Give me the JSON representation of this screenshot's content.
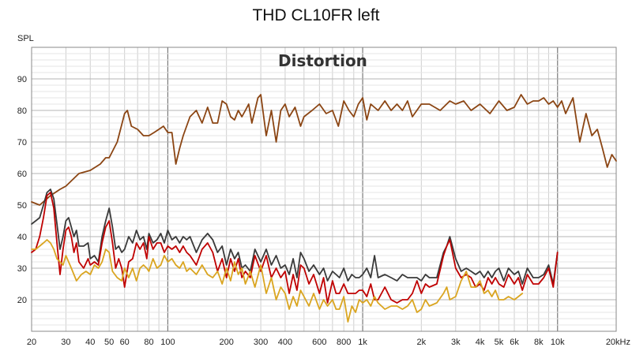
{
  "chart_data": {
    "type": "line",
    "title": "THD CL10FR left",
    "annotation": "Distortion",
    "ylabel": "SPL",
    "xlabel_unit": "Hz",
    "xscale": "log",
    "xlim": [
      20,
      20000
    ],
    "ylim": [
      10,
      100
    ],
    "grid": true,
    "x_ticks": [
      {
        "v": 20,
        "label": "20"
      },
      {
        "v": 30,
        "label": "30"
      },
      {
        "v": 40,
        "label": "40"
      },
      {
        "v": 50,
        "label": "50"
      },
      {
        "v": 60,
        "label": "60"
      },
      {
        "v": 80,
        "label": "80"
      },
      {
        "v": 100,
        "label": "100"
      },
      {
        "v": 200,
        "label": "200"
      },
      {
        "v": 300,
        "label": "300"
      },
      {
        "v": 400,
        "label": "400"
      },
      {
        "v": 600,
        "label": "600"
      },
      {
        "v": 800,
        "label": "800"
      },
      {
        "v": 1000,
        "label": "1k"
      },
      {
        "v": 2000,
        "label": "2k"
      },
      {
        "v": 3000,
        "label": "3k"
      },
      {
        "v": 4000,
        "label": "4k"
      },
      {
        "v": 5000,
        "label": "5k"
      },
      {
        "v": 6000,
        "label": "6k"
      },
      {
        "v": 8000,
        "label": "8k"
      },
      {
        "v": 10000,
        "label": "10k"
      },
      {
        "v": 20000,
        "label": "20kHz"
      }
    ],
    "y_ticks": [
      20,
      30,
      40,
      50,
      60,
      70,
      80,
      90
    ],
    "series": [
      {
        "color": "#8B4513",
        "x": [
          20,
          22,
          25,
          28,
          30,
          35,
          40,
          45,
          48,
          50,
          55,
          60,
          62,
          65,
          70,
          75,
          80,
          85,
          90,
          95,
          100,
          105,
          110,
          115,
          120,
          130,
          140,
          150,
          160,
          170,
          180,
          190,
          200,
          210,
          220,
          230,
          240,
          250,
          260,
          270,
          280,
          290,
          300,
          320,
          340,
          360,
          380,
          400,
          420,
          450,
          480,
          500,
          550,
          600,
          650,
          700,
          750,
          800,
          850,
          900,
          950,
          1000,
          1050,
          1100,
          1200,
          1300,
          1400,
          1500,
          1600,
          1700,
          1800,
          2000,
          2200,
          2500,
          2800,
          3000,
          3300,
          3600,
          4000,
          4500,
          5000,
          5500,
          6000,
          6500,
          7000,
          7500,
          8000,
          8500,
          9000,
          9500,
          10000,
          10500,
          11000,
          12000,
          13000,
          14000,
          15000,
          16000,
          17000,
          18000,
          19000,
          20000
        ],
        "values": [
          51,
          50,
          53,
          55,
          56,
          60,
          61,
          63,
          65,
          65,
          70,
          79,
          80,
          75,
          74,
          72,
          72,
          73,
          74,
          75,
          73,
          73,
          63,
          68,
          72,
          78,
          80,
          76,
          81,
          76,
          76,
          83,
          82,
          78,
          77,
          80,
          78,
          80,
          82,
          76,
          80,
          84,
          85,
          72,
          80,
          70,
          80,
          82,
          78,
          81,
          75,
          78,
          80,
          82,
          79,
          80,
          75,
          83,
          80,
          78,
          82,
          84,
          77,
          82,
          80,
          83,
          80,
          82,
          80,
          83,
          78,
          82,
          82,
          80,
          83,
          82,
          83,
          80,
          82,
          79,
          83,
          80,
          81,
          85,
          82,
          83,
          83,
          84,
          82,
          83,
          81,
          83,
          79,
          84,
          70,
          79,
          72,
          74,
          68,
          62,
          66,
          64
        ]
      },
      {
        "color": "#3a3a3a",
        "x": [
          20,
          21,
          22,
          23,
          24,
          25,
          26,
          27,
          28,
          29,
          30,
          31,
          32,
          33,
          34,
          35,
          37,
          39,
          40,
          42,
          44,
          46,
          48,
          50,
          52,
          54,
          56,
          58,
          60,
          63,
          66,
          69,
          72,
          75,
          78,
          80,
          84,
          88,
          92,
          96,
          100,
          105,
          110,
          115,
          120,
          125,
          130,
          140,
          150,
          160,
          170,
          180,
          190,
          200,
          210,
          220,
          230,
          240,
          250,
          265,
          280,
          300,
          320,
          340,
          360,
          380,
          400,
          420,
          440,
          460,
          480,
          500,
          530,
          560,
          600,
          630,
          660,
          700,
          730,
          760,
          800,
          840,
          880,
          920,
          960,
          1000,
          1050,
          1100,
          1150,
          1200,
          1300,
          1400,
          1500,
          1600,
          1700,
          1800,
          1900,
          2000,
          2100,
          2200,
          2400,
          2600,
          2700,
          2800,
          3000,
          3200,
          3400,
          3600,
          3800,
          4000,
          4200,
          4400,
          4600,
          4800,
          5000,
          5300,
          5600,
          6000,
          6300,
          6600,
          7000,
          7500,
          8000,
          8500,
          9000,
          9500,
          10000
        ],
        "values": [
          44,
          45,
          46,
          50,
          54,
          55,
          52,
          44,
          36,
          40,
          45,
          46,
          43,
          40,
          42,
          37,
          37,
          38,
          33,
          34,
          32,
          40,
          45,
          49,
          43,
          36,
          37,
          35,
          36,
          40,
          38,
          42,
          39,
          40,
          36,
          41,
          38,
          39,
          41,
          38,
          42,
          39,
          40,
          38,
          40,
          39,
          40,
          35,
          39,
          41,
          39,
          35,
          37,
          31,
          36,
          33,
          35,
          30,
          31,
          29,
          36,
          32,
          36,
          31,
          34,
          30,
          31,
          28,
          33,
          27,
          35,
          33,
          29,
          31,
          28,
          30,
          26,
          29,
          28,
          27,
          30,
          26,
          28,
          27,
          27,
          28,
          30,
          27,
          34,
          27,
          28,
          27,
          26,
          28,
          27,
          27,
          27,
          26,
          28,
          27,
          27,
          35,
          37,
          40,
          33,
          29,
          30,
          29,
          28,
          29,
          27,
          29,
          27,
          29,
          30,
          26,
          30,
          28,
          29,
          25,
          30,
          27,
          27,
          28,
          31,
          25,
          35
        ]
      },
      {
        "color": "#C00000",
        "x": [
          20,
          21,
          22,
          23,
          24,
          25,
          26,
          27,
          28,
          29,
          30,
          31,
          32,
          33,
          34,
          35,
          37,
          39,
          40,
          42,
          44,
          46,
          48,
          50,
          52,
          54,
          56,
          58,
          60,
          63,
          66,
          69,
          72,
          75,
          78,
          80,
          84,
          88,
          92,
          96,
          100,
          105,
          110,
          115,
          120,
          125,
          130,
          140,
          150,
          160,
          170,
          180,
          190,
          200,
          210,
          220,
          230,
          240,
          250,
          265,
          280,
          300,
          320,
          340,
          360,
          380,
          400,
          420,
          440,
          460,
          480,
          500,
          530,
          560,
          600,
          630,
          660,
          700,
          730,
          760,
          800,
          840,
          880,
          920,
          960,
          1000,
          1050,
          1100,
          1150,
          1200,
          1300,
          1400,
          1500,
          1600,
          1700,
          1800,
          1900,
          2000,
          2100,
          2200,
          2400,
          2600,
          2700,
          2800,
          3000,
          3200,
          3400,
          3600,
          3800,
          4000,
          4200,
          4400,
          4600,
          4800,
          5000,
          5300,
          5600,
          6000,
          6300,
          6600,
          7000,
          7500,
          8000,
          8500,
          9000,
          9500,
          10000
        ],
        "values": [
          35,
          36,
          40,
          46,
          53,
          54,
          49,
          38,
          28,
          36,
          42,
          43,
          40,
          35,
          38,
          32,
          30,
          33,
          31,
          32,
          31,
          38,
          43,
          45,
          38,
          30,
          33,
          30,
          24,
          32,
          33,
          38,
          36,
          38,
          33,
          40,
          36,
          38,
          38,
          35,
          37,
          36,
          37,
          35,
          37,
          35,
          34,
          31,
          36,
          38,
          35,
          29,
          33,
          27,
          33,
          29,
          33,
          27,
          29,
          27,
          34,
          29,
          34,
          27,
          30,
          27,
          29,
          22,
          28,
          23,
          31,
          30,
          25,
          28,
          22,
          27,
          19,
          26,
          22,
          22,
          25,
          22,
          22,
          22,
          23,
          23,
          21,
          25,
          20,
          20,
          24,
          20,
          19,
          20,
          20,
          22,
          26,
          22,
          25,
          24,
          25,
          34,
          37,
          39,
          30,
          27,
          28,
          27,
          24,
          25,
          23,
          27,
          25,
          27,
          25,
          24,
          28,
          25,
          27,
          23,
          28,
          25,
          25,
          27,
          30,
          24,
          35
        ]
      },
      {
        "color": "#DAA520",
        "x": [
          20,
          21,
          22,
          23,
          24,
          25,
          26,
          27,
          28,
          29,
          30,
          32,
          34,
          36,
          38,
          40,
          42,
          44,
          46,
          48,
          50,
          52,
          55,
          58,
          60,
          63,
          66,
          69,
          72,
          75,
          78,
          80,
          84,
          88,
          92,
          96,
          100,
          105,
          110,
          115,
          120,
          125,
          130,
          140,
          150,
          160,
          170,
          180,
          190,
          200,
          210,
          220,
          230,
          240,
          250,
          265,
          280,
          300,
          320,
          340,
          360,
          380,
          400,
          420,
          440,
          460,
          480,
          500,
          530,
          560,
          600,
          630,
          660,
          700,
          730,
          760,
          800,
          840,
          880,
          920,
          960,
          1000,
          1050,
          1100,
          1150,
          1200,
          1300,
          1400,
          1500,
          1600,
          1700,
          1800,
          1900,
          2000,
          2100,
          2200,
          2400,
          2600,
          2700,
          2800,
          3000,
          3200,
          3400,
          3600,
          3800,
          4000,
          4200,
          4400,
          4600,
          4800,
          5000,
          5300,
          5600,
          6000,
          6300,
          6600
        ],
        "values": [
          36,
          36,
          37,
          38,
          39,
          38,
          36,
          33,
          32,
          31,
          34,
          30,
          26,
          28,
          29,
          28,
          31,
          30,
          32,
          36,
          35,
          29,
          27,
          26,
          30,
          27,
          30,
          26,
          30,
          31,
          30,
          29,
          33,
          30,
          31,
          34,
          32,
          33,
          31,
          30,
          32,
          29,
          30,
          28,
          31,
          28,
          27,
          29,
          25,
          30,
          26,
          32,
          28,
          30,
          25,
          29,
          24,
          31,
          22,
          27,
          20,
          24,
          22,
          17,
          21,
          18,
          23,
          21,
          18,
          22,
          17,
          20,
          18,
          20,
          17,
          17,
          21,
          13,
          18,
          16,
          20,
          19,
          20,
          18,
          21,
          19,
          17,
          18,
          18,
          17,
          18,
          20,
          16,
          17,
          20,
          18,
          19,
          22,
          24,
          20,
          21,
          26,
          29,
          24,
          24,
          26,
          22,
          23,
          21,
          23,
          20,
          20,
          21,
          20,
          21,
          22
        ]
      }
    ]
  }
}
